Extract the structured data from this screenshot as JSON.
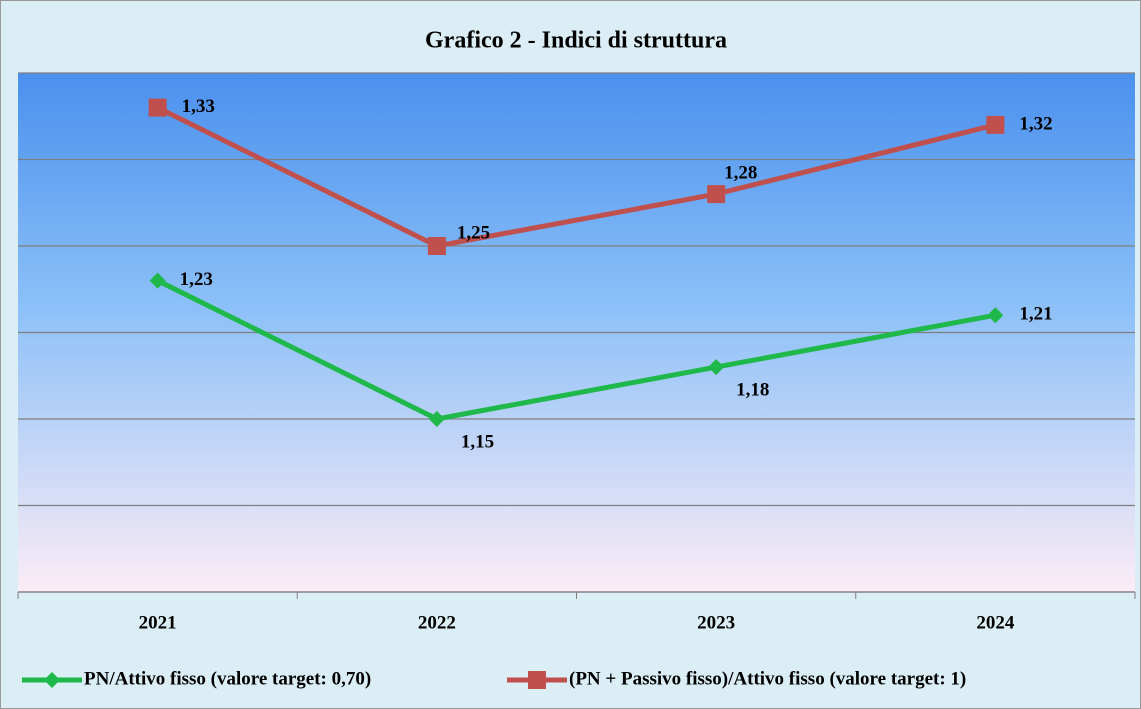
{
  "chart_data": {
    "type": "line",
    "title": "Grafico 2 - Indici di struttura",
    "categories": [
      "2021",
      "2022",
      "2023",
      "2024"
    ],
    "series": [
      {
        "name": "PN/Attivo fisso (valore target: 0,70)",
        "color": "#1fb84a",
        "marker": "diamond",
        "values": [
          1.23,
          1.15,
          1.18,
          1.21
        ],
        "value_labels": [
          "1,23",
          "1,15",
          "1,18",
          "1,21"
        ]
      },
      {
        "name": "(PN + Passivo fisso)/Attivo fisso (valore target: 1)",
        "color": "#c0504d",
        "marker": "square",
        "values": [
          1.33,
          1.25,
          1.28,
          1.32
        ],
        "value_labels": [
          "1,33",
          "1,25",
          "1,28",
          "1,32"
        ]
      }
    ],
    "ylim": [
      1.05,
      1.35
    ],
    "yticks": [
      1.05,
      1.1,
      1.15,
      1.2,
      1.25,
      1.3,
      1.35
    ],
    "grid": true,
    "legend": "bottom"
  }
}
